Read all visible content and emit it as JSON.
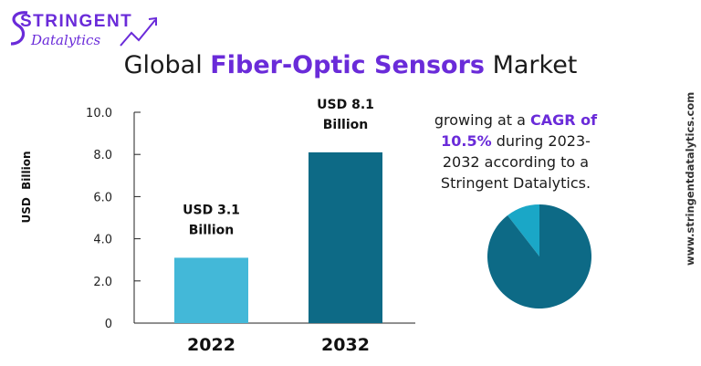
{
  "header": {
    "logo": {
      "line1": "Stringent",
      "line2": "Datalytics",
      "color": "#6a2bd9",
      "icon": "trend-arrow-icon"
    },
    "title_pre": "Global ",
    "title_highlight": "Fiber-Optic Sensors",
    "title_post": " Market"
  },
  "info": {
    "cagr_pre": "growing at a ",
    "cagr_label": "CAGR of",
    "cagr_value": "10.5%",
    "cagr_post": " during 2023-2032 according to a Stringent Datalytics."
  },
  "side_url": "www.stringentdatalytics.com",
  "colors": {
    "accent": "#6a2bd9",
    "bar_2022": "#43b8d8",
    "bar_2032": "#0d6a86",
    "pie_small": "#1aa7c7",
    "pie_large": "#0d6a86"
  },
  "chart_data": {
    "type": "bar",
    "ylabel": "USD  Billion",
    "categories": [
      "2022",
      "2032"
    ],
    "values": [
      3.1,
      8.1
    ],
    "value_labels": [
      [
        "USD 3.1",
        "Billion"
      ],
      [
        "USD 8.1",
        "Billion"
      ]
    ],
    "ylim": [
      0,
      10
    ],
    "yticks": [
      0,
      2,
      4,
      6,
      8,
      10
    ],
    "ytick_labels": [
      "0",
      "2.0",
      "4.0",
      "6.0",
      "8.0",
      "10.0"
    ],
    "grid": false,
    "legend": "none",
    "pie": {
      "type": "pie",
      "values": [
        10.5,
        89.5
      ]
    }
  }
}
